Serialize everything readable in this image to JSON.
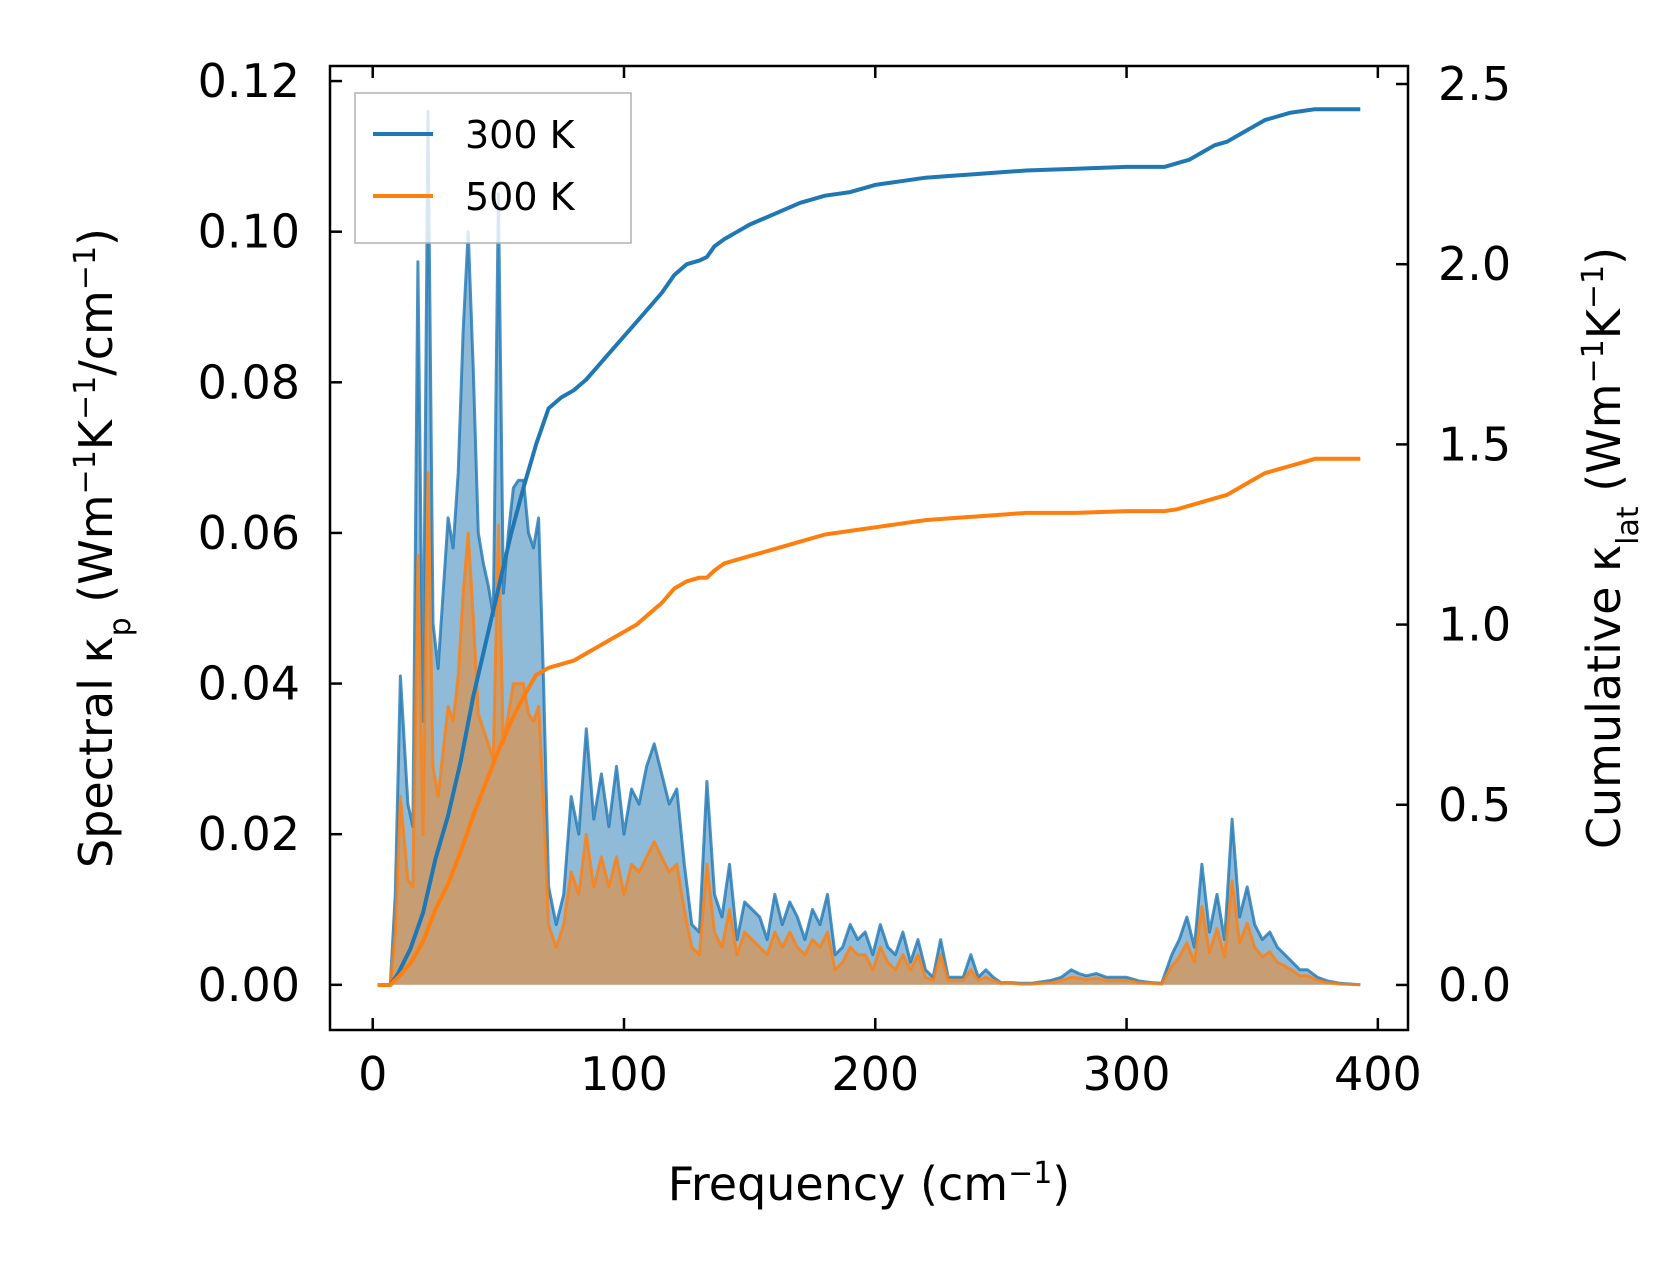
{
  "chart_data": {
    "type": "area",
    "xlabel": "Frequency (cm⁻¹)",
    "ylabel_left": "Spectral κₚ (Wm⁻¹K⁻¹/cm⁻¹)",
    "ylabel_right": "Cumulative κₗₐₜ (Wm⁻¹K⁻¹)",
    "xlim": [
      -17,
      412
    ],
    "ylim_left": [
      -0.006,
      0.122
    ],
    "ylim_right": [
      -0.125,
      2.55
    ],
    "xticks": [
      0,
      100,
      200,
      300,
      400
    ],
    "xtick_labels": [
      "0",
      "100",
      "200",
      "300",
      "400"
    ],
    "yticks_left": [
      0,
      0.02,
      0.04,
      0.06,
      0.08,
      0.1,
      0.12
    ],
    "ytick_labels_left": [
      "0.00",
      "0.02",
      "0.04",
      "0.06",
      "0.08",
      "0.10",
      "0.12"
    ],
    "yticks_right": [
      0,
      0.5,
      1.0,
      1.5,
      2.0,
      2.5
    ],
    "ytick_labels_right": [
      "0.0",
      "0.5",
      "1.0",
      "1.5",
      "2.0",
      "2.5"
    ],
    "legend": {
      "position": "upper-left",
      "entries": [
        "300 K",
        "500 K"
      ]
    },
    "colors": {
      "s300": "#1f77b4",
      "s500": "#ff7f0e"
    },
    "spectral": {
      "x": [
        2,
        7,
        9,
        11,
        14,
        16,
        18,
        20,
        22,
        24,
        26,
        28,
        30,
        32,
        34,
        36,
        38,
        40,
        42,
        44,
        46,
        48,
        50,
        52,
        54,
        56,
        58,
        60,
        62,
        64,
        66,
        68,
        70,
        73,
        76,
        79,
        82,
        85,
        88,
        91,
        94,
        97,
        100,
        103,
        106,
        109,
        112,
        115,
        118,
        121,
        124,
        127,
        130,
        133,
        136,
        139,
        142,
        145,
        148,
        151,
        154,
        157,
        160,
        163,
        166,
        169,
        172,
        175,
        178,
        181,
        184,
        187,
        190,
        193,
        196,
        199,
        202,
        205,
        208,
        211,
        214,
        217,
        220,
        223,
        226,
        229,
        232,
        235,
        238,
        241,
        244,
        247,
        250,
        254,
        258,
        262,
        266,
        270,
        274,
        278,
        281,
        284,
        288,
        292,
        296,
        300,
        305,
        310,
        314,
        318,
        321,
        324,
        327,
        330,
        333,
        336,
        339,
        342,
        345,
        348,
        351,
        354,
        357,
        360,
        363,
        366,
        369,
        372,
        376,
        380,
        385,
        393
      ],
      "k300": [
        0,
        0,
        0.012,
        0.041,
        0.024,
        0.021,
        0.096,
        0.035,
        0.116,
        0.048,
        0.042,
        0.052,
        0.062,
        0.058,
        0.068,
        0.087,
        0.1,
        0.082,
        0.06,
        0.056,
        0.053,
        0.049,
        0.105,
        0.052,
        0.06,
        0.066,
        0.067,
        0.067,
        0.06,
        0.058,
        0.062,
        0.04,
        0.013,
        0.008,
        0.012,
        0.025,
        0.02,
        0.034,
        0.022,
        0.028,
        0.021,
        0.029,
        0.02,
        0.026,
        0.024,
        0.029,
        0.032,
        0.028,
        0.024,
        0.026,
        0.016,
        0.008,
        0.007,
        0.027,
        0.012,
        0.009,
        0.016,
        0.006,
        0.011,
        0.01,
        0.009,
        0.006,
        0.012,
        0.008,
        0.011,
        0.009,
        0.006,
        0.01,
        0.008,
        0.012,
        0.004,
        0.005,
        0.008,
        0.006,
        0.007,
        0.004,
        0.008,
        0.005,
        0.004,
        0.007,
        0.003,
        0.006,
        0.002,
        0.001,
        0.006,
        0.001,
        0.001,
        0.001,
        0.004,
        0.001,
        0.002,
        0.001,
        0.0003,
        0.0003,
        0.0002,
        0.0002,
        0.0004,
        0.0006,
        0.001,
        0.002,
        0.0015,
        0.0012,
        0.0015,
        0.001,
        0.001,
        0.001,
        0.0005,
        0.0003,
        0.0002,
        0.004,
        0.006,
        0.009,
        0.005,
        0.016,
        0.007,
        0.012,
        0.006,
        0.022,
        0.009,
        0.013,
        0.008,
        0.006,
        0.007,
        0.005,
        0.004,
        0.003,
        0.002,
        0.002,
        0.001,
        0.0005,
        0.0002,
        0
      ],
      "k500": [
        0,
        0,
        0.007,
        0.025,
        0.014,
        0.013,
        0.057,
        0.02,
        0.068,
        0.029,
        0.025,
        0.031,
        0.037,
        0.035,
        0.041,
        0.052,
        0.06,
        0.049,
        0.036,
        0.034,
        0.032,
        0.03,
        0.061,
        0.032,
        0.036,
        0.04,
        0.04,
        0.04,
        0.036,
        0.035,
        0.037,
        0.024,
        0.008,
        0.005,
        0.008,
        0.015,
        0.012,
        0.02,
        0.013,
        0.017,
        0.013,
        0.017,
        0.012,
        0.016,
        0.015,
        0.017,
        0.019,
        0.017,
        0.015,
        0.016,
        0.01,
        0.005,
        0.004,
        0.016,
        0.007,
        0.005,
        0.01,
        0.004,
        0.007,
        0.006,
        0.005,
        0.004,
        0.007,
        0.005,
        0.007,
        0.005,
        0.004,
        0.006,
        0.005,
        0.007,
        0.002,
        0.003,
        0.005,
        0.004,
        0.004,
        0.002,
        0.005,
        0.003,
        0.002,
        0.004,
        0.002,
        0.004,
        0.001,
        0.0006,
        0.004,
        0.0006,
        0.0006,
        0.0006,
        0.002,
        0.0006,
        0.001,
        0.0006,
        0.0002,
        0.0002,
        0.0001,
        0.0001,
        0.0002,
        0.0003,
        0.0006,
        0.001,
        0.0009,
        0.0007,
        0.0009,
        0.0006,
        0.0006,
        0.0006,
        0.0003,
        0.0002,
        0.0001,
        0.0025,
        0.0037,
        0.0056,
        0.003,
        0.0104,
        0.0043,
        0.0075,
        0.0037,
        0.0138,
        0.0056,
        0.0082,
        0.005,
        0.0037,
        0.0044,
        0.003,
        0.0025,
        0.0019,
        0.0012,
        0.0012,
        0.0006,
        0.0003,
        0.0001,
        0
      ]
    },
    "cumulative": {
      "x": [
        2,
        7,
        10,
        15,
        20,
        25,
        30,
        35,
        40,
        45,
        50,
        55,
        60,
        65,
        70,
        75,
        80,
        85,
        90,
        95,
        100,
        105,
        110,
        115,
        120,
        125,
        130,
        133,
        136,
        140,
        145,
        150,
        160,
        170,
        180,
        190,
        200,
        210,
        220,
        230,
        240,
        250,
        260,
        280,
        300,
        315,
        320,
        325,
        330,
        335,
        340,
        345,
        350,
        355,
        360,
        365,
        370,
        375,
        380,
        385,
        393
      ],
      "c300": [
        0,
        0,
        0.03,
        0.1,
        0.2,
        0.35,
        0.47,
        0.62,
        0.8,
        0.95,
        1.1,
        1.25,
        1.38,
        1.5,
        1.6,
        1.63,
        1.65,
        1.68,
        1.72,
        1.76,
        1.8,
        1.84,
        1.88,
        1.92,
        1.97,
        2.0,
        2.01,
        2.02,
        2.05,
        2.07,
        2.09,
        2.11,
        2.14,
        2.17,
        2.19,
        2.2,
        2.22,
        2.23,
        2.24,
        2.245,
        2.25,
        2.255,
        2.26,
        2.265,
        2.27,
        2.27,
        2.28,
        2.29,
        2.31,
        2.33,
        2.34,
        2.36,
        2.38,
        2.4,
        2.41,
        2.42,
        2.425,
        2.43,
        2.43,
        2.43,
        2.43
      ],
      "c500": [
        0,
        0,
        0.02,
        0.06,
        0.12,
        0.21,
        0.28,
        0.37,
        0.47,
        0.56,
        0.65,
        0.73,
        0.8,
        0.86,
        0.88,
        0.89,
        0.9,
        0.92,
        0.94,
        0.96,
        0.98,
        1.0,
        1.03,
        1.06,
        1.1,
        1.12,
        1.13,
        1.13,
        1.15,
        1.17,
        1.18,
        1.19,
        1.21,
        1.23,
        1.25,
        1.26,
        1.27,
        1.28,
        1.29,
        1.295,
        1.3,
        1.305,
        1.31,
        1.31,
        1.315,
        1.315,
        1.32,
        1.33,
        1.34,
        1.35,
        1.36,
        1.38,
        1.4,
        1.42,
        1.43,
        1.44,
        1.45,
        1.46,
        1.46,
        1.46,
        1.46
      ]
    }
  }
}
